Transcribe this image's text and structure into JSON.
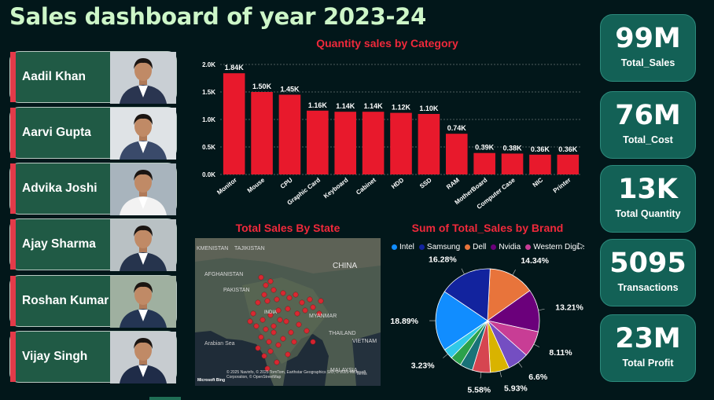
{
  "dashboard_title": "Sales dashboard of year 2023-24",
  "people": [
    {
      "name": "Aadil Khan"
    },
    {
      "name": "Aarvi Gupta"
    },
    {
      "name": "Advika Joshi"
    },
    {
      "name": "Ajay Sharma"
    },
    {
      "name": "Roshan Kumar"
    },
    {
      "name": "Vijay Singh"
    }
  ],
  "kpis": [
    {
      "value": "99M",
      "label": "Total_Sales"
    },
    {
      "value": "76M",
      "label": "Total_Cost"
    },
    {
      "value": "13K",
      "label": "Total Quantity"
    },
    {
      "value": "5095",
      "label": "Transactions"
    },
    {
      "value": "23M",
      "label": "Total Profit"
    }
  ],
  "map": {
    "title": "Total Sales By State",
    "labels": [
      "KMENISTAN",
      "TAJIKISTAN",
      "AFGHANISTAN",
      "PAKISTAN",
      "CHINA",
      "INDIA",
      "MYANMAR",
      "THAILAND",
      "VIETNAM",
      "Arabian Sea",
      "MALAYSIA"
    ],
    "attribution": "© 2025 Navinfo, © 2025 TomTom, Earthstar Geographics SIO, © 2025 Microsoft Corporation, © OpenStreetMap",
    "logo_text": "Microsoft Bing",
    "terms": "Terms"
  },
  "chart_data": [
    {
      "type": "bar",
      "title": "Quantity sales by Category",
      "categories": [
        "Monitor",
        "Mouse",
        "CPU",
        "Graphic Card",
        "Keyboard",
        "Cabinet",
        "HDD",
        "SSD",
        "RAM",
        "MotherBoard",
        "Computer Case",
        "NIC",
        "Printer"
      ],
      "values": [
        1840,
        1500,
        1450,
        1160,
        1140,
        1140,
        1120,
        1100,
        740,
        390,
        380,
        360,
        360
      ],
      "data_labels": [
        "1.84K",
        "1.50K",
        "1.45K",
        "1.16K",
        "1.14K",
        "1.14K",
        "1.12K",
        "1.10K",
        "0.74K",
        "0.39K",
        "0.38K",
        "0.36K",
        "0.36K"
      ],
      "ylim": [
        0,
        2000
      ],
      "yticks": [
        "0.0K",
        "0.5K",
        "1.0K",
        "1.5K",
        "2.0K"
      ],
      "bar_color": "#e8192c",
      "grid": true
    },
    {
      "type": "pie",
      "title": "Sum of Total_Sales by Brand",
      "legend": [
        "Intel",
        "Samsung",
        "Dell",
        "Nvidia",
        "Western Digi..."
      ],
      "legend_placement": "top",
      "slices": [
        {
          "value": 14.34,
          "label": "14.34%",
          "color": "#e8743b"
        },
        {
          "value": 13.21,
          "label": "13.21%",
          "color": "#6b007b"
        },
        {
          "value": 8.11,
          "label": "8.11%",
          "color": "#c83d95"
        },
        {
          "value": 6.6,
          "label": "6.6%",
          "color": "#744ec2"
        },
        {
          "value": 5.93,
          "label": "5.93%",
          "color": "#d9b300"
        },
        {
          "value": 5.58,
          "label": "5.58%",
          "color": "#d64550"
        },
        {
          "value": 4.0,
          "label": "",
          "color": "#197278"
        },
        {
          "value": 3.5,
          "label": "",
          "color": "#2ba14b"
        },
        {
          "value": 3.23,
          "label": "3.23%",
          "color": "#31c9e8"
        },
        {
          "value": 18.89,
          "label": "18.89%",
          "color": "#118dff"
        },
        {
          "value": 16.28,
          "label": "16.28%",
          "color": "#12239e"
        }
      ],
      "legend_colors": [
        "#118dff",
        "#12239e",
        "#e8743b",
        "#6b007b",
        "#c83d95"
      ]
    }
  ]
}
